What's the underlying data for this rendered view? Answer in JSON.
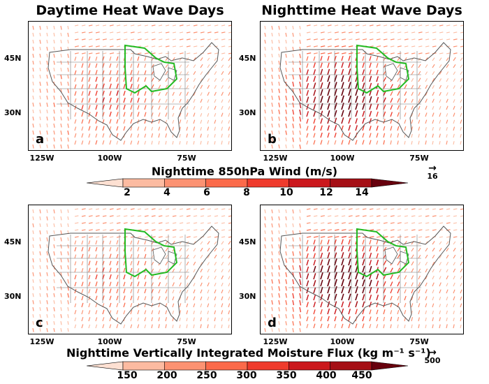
{
  "titles": {
    "left": "Daytime Heat Wave Days",
    "right": "Nighttime Heat Wave Days"
  },
  "panels": [
    {
      "label": "a",
      "intensity": 0.35
    },
    {
      "label": "b",
      "intensity": 0.85
    },
    {
      "label": "c",
      "intensity": 0.25
    },
    {
      "label": "d",
      "intensity": 0.9
    }
  ],
  "lat_labels": [
    "45N",
    "30N"
  ],
  "lon_labels": [
    "125W",
    "100W",
    "75W"
  ],
  "colorbar_wind": {
    "title": "Nighttime 850hPa Wind (m/s)",
    "ticks": [
      "2",
      "4",
      "6",
      "8",
      "10",
      "12",
      "14"
    ],
    "reference_vector": "16"
  },
  "colorbar_moisture": {
    "title": "Nighttime Vertically Integrated Moisture Flux (kg m⁻¹ s⁻¹)",
    "ticks": [
      "150",
      "200",
      "250",
      "300",
      "350",
      "400",
      "450"
    ],
    "reference_vector": "500"
  },
  "colors": {
    "scale": [
      "#fde0d2",
      "#fcbba1",
      "#fc9272",
      "#fb6a4a",
      "#ef3b2c",
      "#cb181d",
      "#a50f15",
      "#67000d"
    ],
    "region_outline": "#22bb22",
    "border": "#555555"
  }
}
